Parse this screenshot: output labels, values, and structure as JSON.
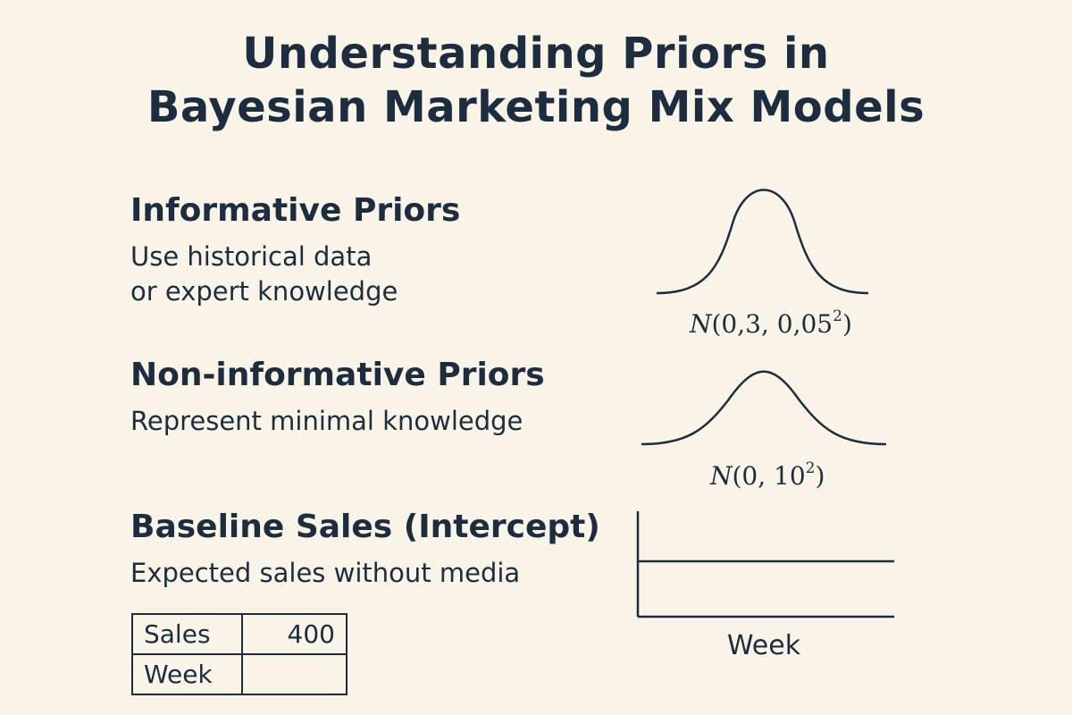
{
  "title": {
    "line1": "Understanding Priors in",
    "line2": "Bayesian Marketing Mix Models"
  },
  "sections": {
    "informative": {
      "heading": "Informative Priors",
      "desc_line1": "Use historical data",
      "desc_line2": "or expert knowledge",
      "formula": {
        "var": "N",
        "args": "(0,3, 0,05",
        "exp": "2",
        "close": ")"
      }
    },
    "noninformative": {
      "heading": "Non-informative Priors",
      "desc_line1": "Represent minimal knowledge",
      "formula": {
        "var": "N",
        "args": "(0, 10",
        "exp": "2",
        "close": ")"
      }
    },
    "baseline": {
      "heading": "Baseline Sales (Intercept)",
      "desc_line1": "Expected sales without media",
      "chart_xlabel": "Week"
    }
  },
  "table": {
    "rows": [
      {
        "label": "Sales",
        "value": "400"
      },
      {
        "label": "Week",
        "value": ""
      }
    ]
  },
  "colors": {
    "background": "#faf4e8",
    "ink": "#1c2d3f"
  }
}
